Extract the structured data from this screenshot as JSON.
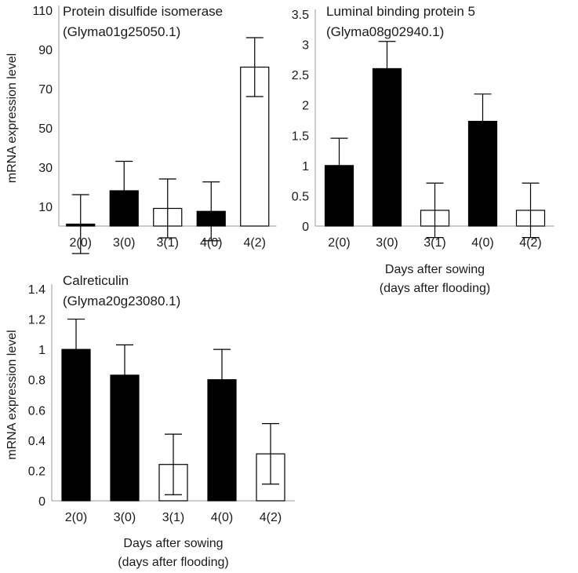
{
  "chart_data": [
    {
      "id": "pdi",
      "type": "bar",
      "title": "Protein disulfide isomerase",
      "subtitle": "(Glyma01g25050.1)",
      "ylabel": "mRNA expression level",
      "xlabel": "",
      "xlabel2": "",
      "categories": [
        "2(0)",
        "3(0)",
        "3(1)",
        "4(0)",
        "4(2)"
      ],
      "values": [
        1,
        18,
        9,
        7.5,
        81
      ],
      "errors": [
        15,
        15,
        15,
        15,
        15
      ],
      "fills": [
        "#000000",
        "#000000",
        "#ffffff",
        "#000000",
        "#ffffff"
      ],
      "yticks": [
        10,
        30,
        50,
        70,
        90,
        110
      ],
      "ylim": [
        0,
        110
      ]
    },
    {
      "id": "lbp",
      "type": "bar",
      "title": "Luminal binding protein 5",
      "subtitle": "(Glyma08g02940.1)",
      "ylabel": "",
      "xlabel": "Days after sowing",
      "xlabel2": "(days after flooding)",
      "categories": [
        "2(0)",
        "3(0)",
        "3(1)",
        "4(0)",
        "4(2)"
      ],
      "values": [
        1,
        2.6,
        0.26,
        1.73,
        0.26
      ],
      "errors": [
        0.45,
        0.45,
        0.45,
        0.45,
        0.45
      ],
      "fills": [
        "#000000",
        "#000000",
        "#ffffff",
        "#000000",
        "#ffffff"
      ],
      "yticks": [
        0,
        0.5,
        1,
        1.5,
        2,
        2.5,
        3,
        3.5
      ],
      "ylim": [
        0,
        3.5
      ]
    },
    {
      "id": "calr",
      "type": "bar",
      "title": "Calreticulin",
      "subtitle": "(Glyma20g23080.1)",
      "ylabel": "mRNA expression level",
      "xlabel": "Days after sowing",
      "xlabel2": "(days after flooding)",
      "categories": [
        "2(0)",
        "3(0)",
        "3(1)",
        "4(0)",
        "4(2)"
      ],
      "values": [
        1,
        0.83,
        0.24,
        0.8,
        0.31
      ],
      "errors": [
        0.2,
        0.2,
        0.2,
        0.2,
        0.2
      ],
      "fills": [
        "#000000",
        "#000000",
        "#ffffff",
        "#000000",
        "#ffffff"
      ],
      "yticks": [
        0,
        0.2,
        0.4,
        0.6,
        0.8,
        1,
        1.2,
        1.4
      ],
      "ylim": [
        0,
        1.4
      ]
    }
  ]
}
